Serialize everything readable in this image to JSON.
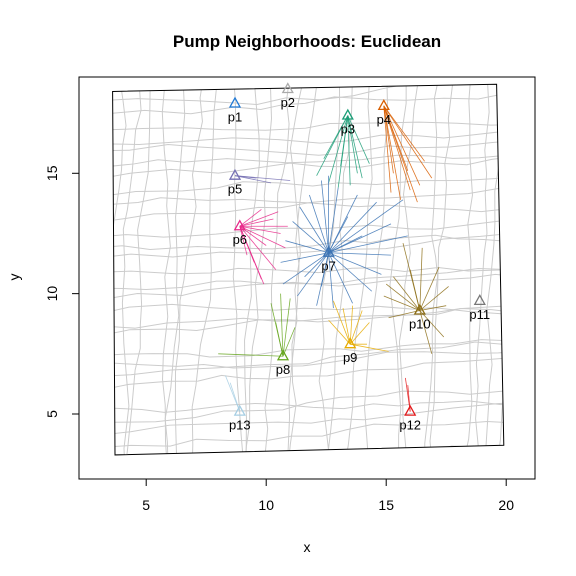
{
  "chart_data": {
    "type": "scatter",
    "title": "Pump Neighborhoods: Euclidean",
    "xlabel": "x",
    "ylabel": "y",
    "xlim": [
      2.2,
      21.2
    ],
    "ylim": [
      2.3,
      19.0
    ],
    "x_ticks": [
      5,
      10,
      15,
      20
    ],
    "y_ticks": [
      5,
      10,
      15
    ],
    "grid": false,
    "legend": "none",
    "pumps": [
      {
        "label": "p1",
        "x": 8.7,
        "y": 17.9,
        "color": "#1f78d4",
        "spokes": []
      },
      {
        "label": "p2",
        "x": 10.9,
        "y": 18.5,
        "color": "#aaaaaa",
        "spokes": []
      },
      {
        "label": "p3",
        "x": 13.4,
        "y": 17.4,
        "color": "#1b9e77",
        "spokes": [
          [
            12.1,
            14.9
          ],
          [
            12.6,
            14.6
          ],
          [
            13.0,
            14.4
          ],
          [
            13.5,
            14.5
          ],
          [
            14.0,
            14.8
          ],
          [
            12.4,
            15.6
          ],
          [
            13.1,
            15.3
          ],
          [
            13.8,
            15.0
          ],
          [
            14.3,
            15.4
          ]
        ]
      },
      {
        "label": "p4",
        "x": 14.9,
        "y": 17.8,
        "color": "#d95f02",
        "spokes": [
          [
            15.2,
            14.2
          ],
          [
            15.6,
            13.9
          ],
          [
            16.0,
            14.3
          ],
          [
            16.4,
            14.5
          ],
          [
            16.9,
            14.8
          ],
          [
            15.9,
            15.1
          ],
          [
            16.6,
            15.5
          ],
          [
            15.3,
            15.0
          ],
          [
            16.3,
            13.8
          ]
        ]
      },
      {
        "label": "p5",
        "x": 8.7,
        "y": 14.9,
        "color": "#7570b3",
        "spokes": [
          [
            11.0,
            14.7
          ],
          [
            10.2,
            14.6
          ],
          [
            9.6,
            14.8
          ]
        ]
      },
      {
        "label": "p6",
        "x": 8.9,
        "y": 12.8,
        "color": "#e7298a",
        "spokes": [
          [
            10.3,
            13.1
          ],
          [
            10.6,
            12.5
          ],
          [
            10.8,
            11.9
          ],
          [
            10.4,
            11.0
          ],
          [
            9.8,
            10.6
          ],
          [
            9.5,
            11.3
          ],
          [
            10.0,
            12.0
          ],
          [
            10.5,
            13.4
          ],
          [
            9.8,
            13.5
          ],
          [
            9.2,
            11.6
          ],
          [
            10.9,
            12.8
          ],
          [
            9.9,
            10.4
          ]
        ]
      },
      {
        "label": "p7",
        "x": 12.6,
        "y": 11.7,
        "color": "#3b73b4",
        "spokes": [
          [
            12.3,
            14.7
          ],
          [
            13.0,
            14.4
          ],
          [
            13.8,
            14.1
          ],
          [
            14.6,
            13.8
          ],
          [
            15.7,
            13.9
          ],
          [
            15.2,
            12.9
          ],
          [
            15.9,
            12.4
          ],
          [
            15.2,
            11.6
          ],
          [
            14.8,
            10.8
          ],
          [
            14.4,
            10.1
          ],
          [
            13.6,
            9.6
          ],
          [
            12.8,
            9.4
          ],
          [
            12.1,
            9.5
          ],
          [
            11.3,
            9.9
          ],
          [
            10.7,
            10.4
          ],
          [
            10.6,
            11.3
          ],
          [
            10.8,
            12.2
          ],
          [
            11.1,
            13.0
          ],
          [
            11.4,
            13.6
          ],
          [
            11.8,
            14.1
          ],
          [
            12.6,
            14.9
          ],
          [
            13.4,
            13.2
          ],
          [
            14.0,
            12.4
          ],
          [
            11.6,
            10.7
          ],
          [
            12.3,
            10.3
          ]
        ]
      },
      {
        "label": "p8",
        "x": 10.7,
        "y": 7.4,
        "color": "#66a61e",
        "spokes": [
          [
            8.0,
            7.5
          ],
          [
            10.2,
            9.6
          ],
          [
            10.6,
            10.0
          ],
          [
            11.0,
            9.8
          ],
          [
            11.2,
            8.6
          ],
          [
            10.4,
            8.8
          ]
        ]
      },
      {
        "label": "p9",
        "x": 13.5,
        "y": 7.9,
        "color": "#e6ab02",
        "spokes": [
          [
            12.8,
            9.7
          ],
          [
            13.2,
            9.4
          ],
          [
            13.6,
            9.5
          ],
          [
            14.0,
            9.3
          ],
          [
            14.3,
            8.8
          ],
          [
            12.6,
            8.9
          ],
          [
            15.1,
            7.6
          ],
          [
            14.2,
            7.9
          ]
        ]
      },
      {
        "label": "p10",
        "x": 16.4,
        "y": 9.3,
        "color": "#8c6d16",
        "spokes": [
          [
            15.7,
            12.1
          ],
          [
            16.5,
            11.9
          ],
          [
            17.2,
            11.1
          ],
          [
            17.6,
            10.3
          ],
          [
            17.4,
            8.2
          ],
          [
            16.9,
            7.5
          ],
          [
            15.3,
            10.7
          ],
          [
            14.9,
            9.9
          ],
          [
            15.1,
            9.0
          ],
          [
            16.0,
            11.0
          ],
          [
            17.5,
            9.5
          ],
          [
            15.0,
            10.4
          ]
        ]
      },
      {
        "label": "p11",
        "x": 18.9,
        "y": 9.7,
        "color": "#777777",
        "spokes": []
      },
      {
        "label": "p12",
        "x": 16.0,
        "y": 5.1,
        "color": "#e31a1c",
        "spokes": [
          [
            15.8,
            6.5
          ],
          [
            15.9,
            6.2
          ]
        ]
      },
      {
        "label": "p13",
        "x": 8.9,
        "y": 5.1,
        "color": "#a6cee3",
        "spokes": [
          [
            8.3,
            6.6
          ],
          [
            8.5,
            6.3
          ]
        ]
      }
    ]
  }
}
